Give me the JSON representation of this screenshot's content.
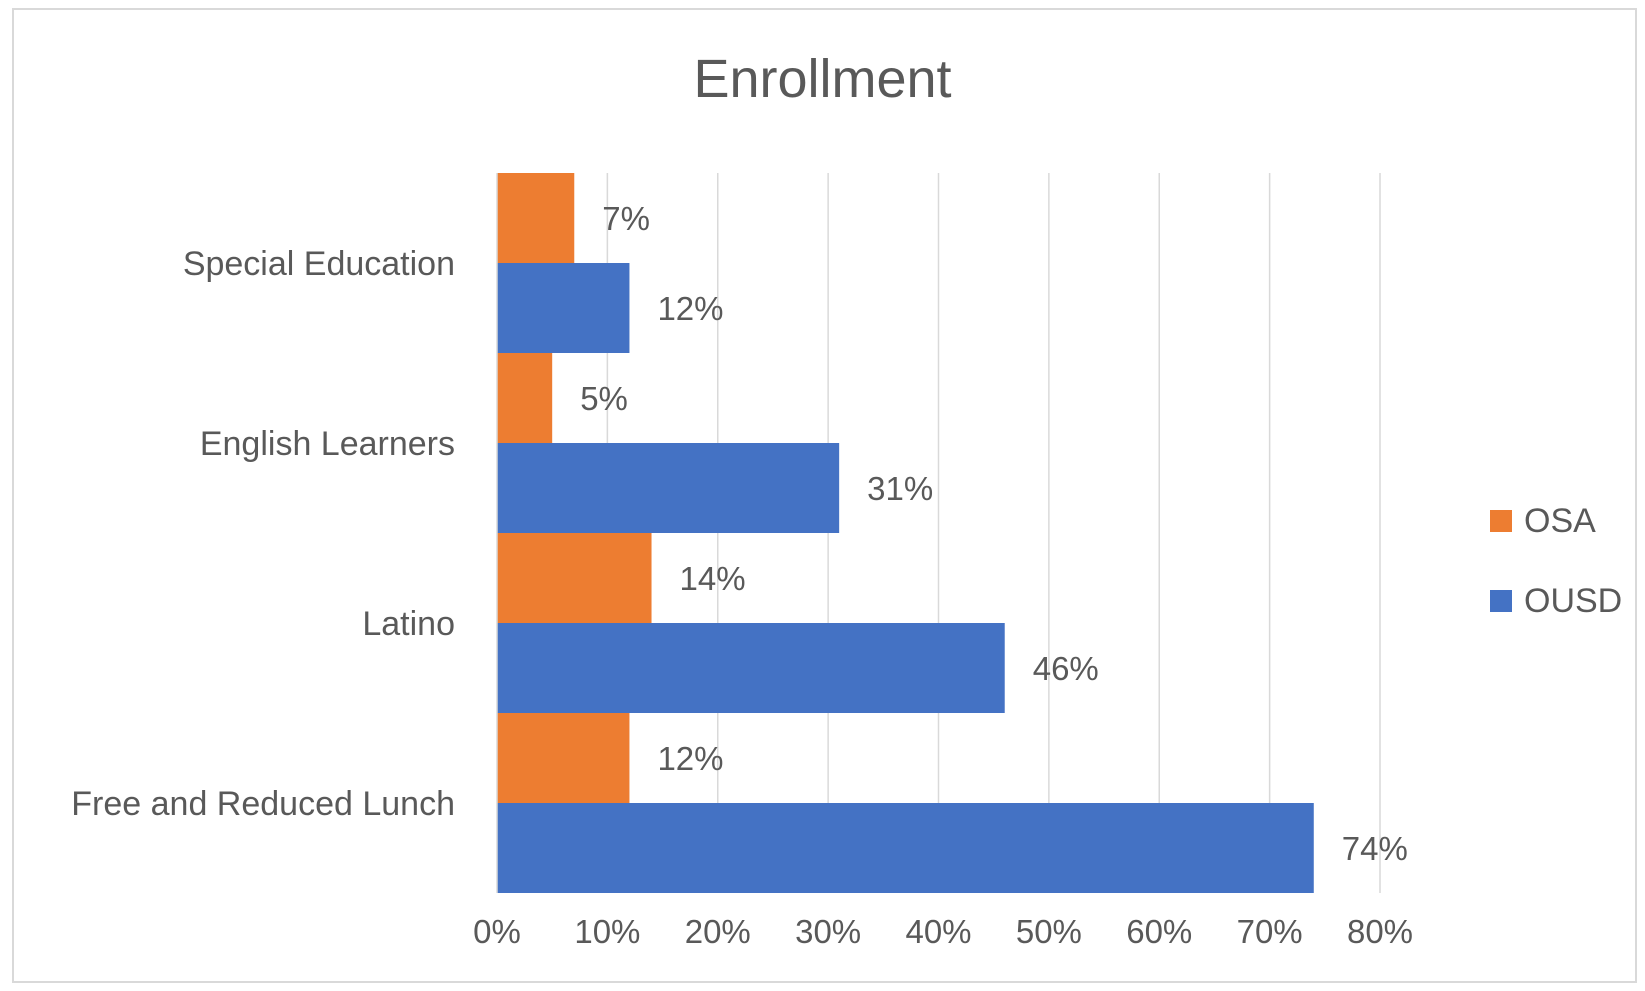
{
  "chart_data": {
    "type": "bar",
    "orientation": "horizontal",
    "title": "Enrollment",
    "categories": [
      "Special Education",
      "English Learners",
      "Latino",
      "Free and Reduced Lunch"
    ],
    "series": [
      {
        "name": "OSA",
        "color": "#ed7d31",
        "values": [
          7,
          5,
          14,
          12
        ],
        "labels": [
          "7%",
          "5%",
          "14%",
          "12%"
        ]
      },
      {
        "name": "OUSD",
        "color": "#4472c4",
        "values": [
          12,
          31,
          46,
          74
        ],
        "labels": [
          "12%",
          "31%",
          "46%",
          "74%"
        ]
      }
    ],
    "xlim": [
      0,
      80
    ],
    "xticks": [
      "0%",
      "10%",
      "20%",
      "30%",
      "40%",
      "50%",
      "60%",
      "70%",
      "80%"
    ],
    "grid": "vertical",
    "legend": "right"
  }
}
